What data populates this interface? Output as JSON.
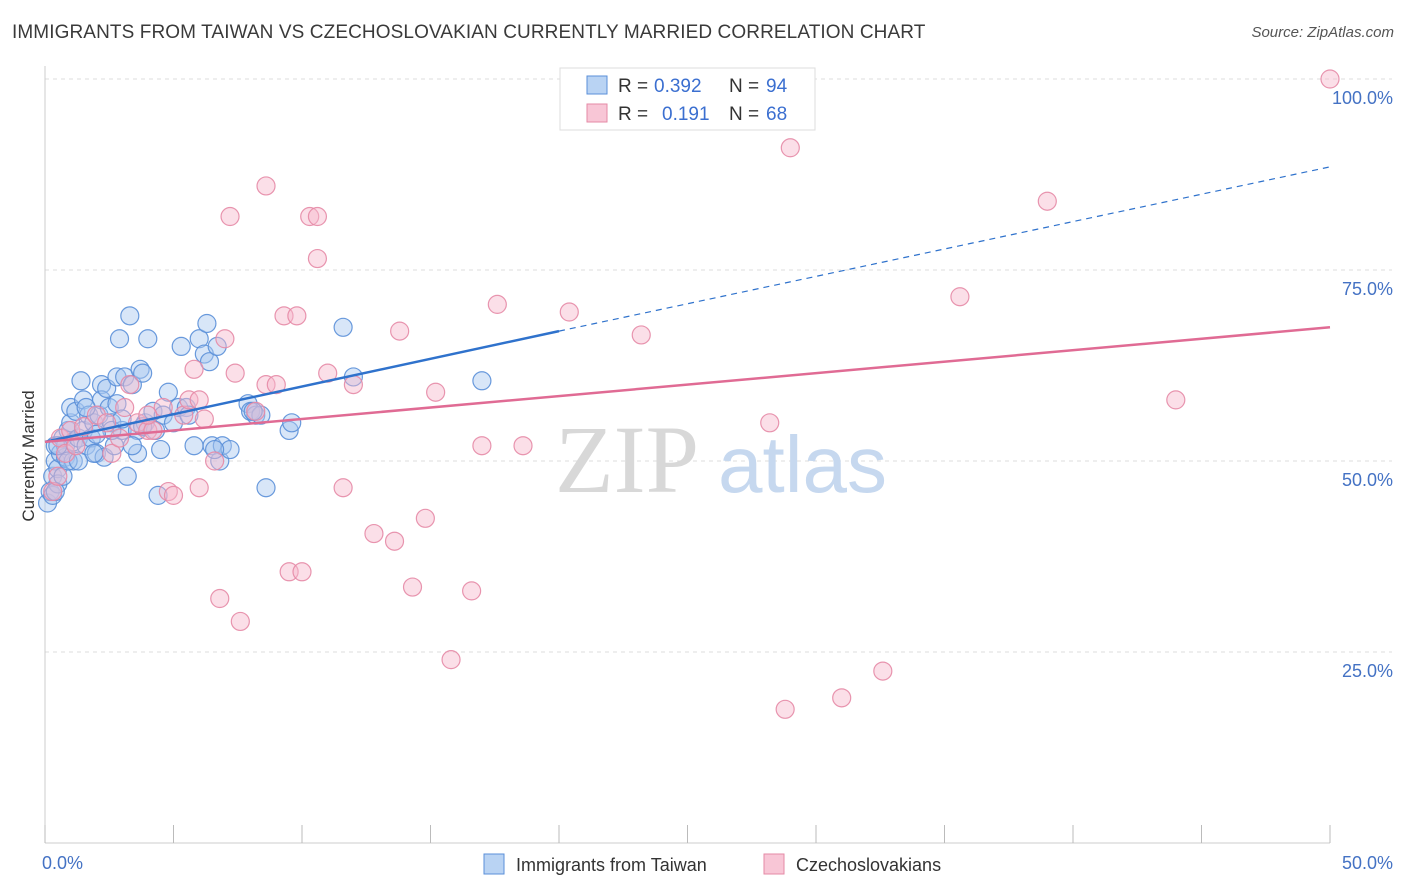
{
  "header": {
    "title": "IMMIGRANTS FROM TAIWAN VS CZECHOSLOVAKIAN CURRENTLY MARRIED CORRELATION CHART",
    "source": "Source: ZipAtlas.com"
  },
  "watermark": {
    "zip": "ZIP",
    "atlas": "atlas"
  },
  "legend": {
    "r_label": "R =",
    "n_label": "N =",
    "series": [
      {
        "r": "0.392",
        "n": "94"
      },
      {
        "r": "0.191",
        "n": "68"
      }
    ]
  },
  "bottom_legend": {
    "series": [
      {
        "label": "Immigrants from Taiwan"
      },
      {
        "label": "Czechoslovakians"
      }
    ]
  },
  "chart_data": {
    "type": "scatter",
    "ylabel": "Currently Married",
    "xlim": [
      0,
      50
    ],
    "ylim": [
      0,
      100
    ],
    "x_tick_labels": [
      "0.0%",
      "50.0%"
    ],
    "y_tick_labels": [
      "25.0%",
      "50.0%",
      "75.0%",
      "100.0%"
    ],
    "y_ticks": [
      25,
      50,
      75,
      100
    ],
    "grid": true,
    "legend_position": "top-center",
    "colors": {
      "taiwan_fill": "#a8c8f0",
      "taiwan_stroke": "#5a8fd8",
      "taiwan_line": "#2f72cc",
      "czech_fill": "#f6b8cc",
      "czech_stroke": "#e58aa6",
      "czech_line": "#e06b94",
      "grid": "#dddddd",
      "axis_labels": "#4472c4"
    },
    "series": [
      {
        "name": "Immigrants from Taiwan",
        "trend": {
          "x0": 0,
          "y0": 52.5,
          "x1": 20,
          "y1": 67,
          "dash_to_x": 50,
          "dash_to_y": 88.5
        },
        "points": [
          [
            0.1,
            44.5
          ],
          [
            0.2,
            46
          ],
          [
            0.3,
            45.5
          ],
          [
            0.3,
            48
          ],
          [
            0.4,
            50
          ],
          [
            0.4,
            52
          ],
          [
            0.5,
            49
          ],
          [
            0.5,
            47
          ],
          [
            0.6,
            51
          ],
          [
            0.7,
            53
          ],
          [
            0.7,
            48
          ],
          [
            0.8,
            50.5
          ],
          [
            0.8,
            52
          ],
          [
            0.9,
            54
          ],
          [
            1.0,
            55
          ],
          [
            1.0,
            57
          ],
          [
            1.1,
            50
          ],
          [
            1.1,
            52.5
          ],
          [
            1.2,
            56.5
          ],
          [
            1.3,
            53
          ],
          [
            1.4,
            60.5
          ],
          [
            1.5,
            54
          ],
          [
            1.5,
            58
          ],
          [
            1.6,
            52
          ],
          [
            1.7,
            56
          ],
          [
            1.8,
            53
          ],
          [
            1.9,
            55
          ],
          [
            2.0,
            51
          ],
          [
            2.1,
            56
          ],
          [
            2.2,
            60
          ],
          [
            2.2,
            58
          ],
          [
            2.3,
            50.5
          ],
          [
            2.4,
            59.5
          ],
          [
            2.5,
            57
          ],
          [
            2.6,
            55
          ],
          [
            2.7,
            52
          ],
          [
            2.8,
            61
          ],
          [
            2.9,
            66
          ],
          [
            3.0,
            54
          ],
          [
            3.1,
            61
          ],
          [
            3.2,
            48
          ],
          [
            3.3,
            69
          ],
          [
            3.4,
            60
          ],
          [
            3.6,
            51
          ],
          [
            3.6,
            54
          ],
          [
            3.7,
            62
          ],
          [
            3.8,
            61.5
          ],
          [
            3.9,
            55
          ],
          [
            4.0,
            66
          ],
          [
            4.2,
            56.5
          ],
          [
            4.3,
            54
          ],
          [
            4.4,
            45.5
          ],
          [
            4.5,
            51.5
          ],
          [
            4.6,
            56
          ],
          [
            4.8,
            59
          ],
          [
            5.0,
            55
          ],
          [
            5.2,
            57
          ],
          [
            5.3,
            65
          ],
          [
            5.5,
            57
          ],
          [
            5.8,
            52
          ],
          [
            6.0,
            66
          ],
          [
            6.2,
            64
          ],
          [
            6.3,
            68
          ],
          [
            6.4,
            63
          ],
          [
            6.5,
            52
          ],
          [
            6.7,
            65
          ],
          [
            6.8,
            50
          ],
          [
            6.9,
            52
          ],
          [
            7.2,
            51.5
          ],
          [
            7.9,
            57.5
          ],
          [
            8.0,
            56.5
          ],
          [
            8.2,
            56
          ],
          [
            8.4,
            56
          ],
          [
            8.6,
            46.5
          ],
          [
            9.5,
            54
          ],
          [
            9.6,
            55
          ],
          [
            11.6,
            67.5
          ],
          [
            12.0,
            61
          ],
          [
            17.0,
            60.5
          ],
          [
            0.9,
            50
          ],
          [
            1.6,
            57
          ],
          [
            2.6,
            54
          ],
          [
            3.4,
            52
          ],
          [
            0.4,
            46
          ],
          [
            1.9,
            51
          ],
          [
            2.8,
            57.5
          ],
          [
            3.8,
            54.5
          ],
          [
            5.6,
            56
          ],
          [
            6.6,
            51.5
          ],
          [
            8.1,
            56.5
          ],
          [
            0.5,
            52
          ],
          [
            1.3,
            50
          ],
          [
            2.0,
            53.5
          ],
          [
            3.0,
            55.5
          ]
        ]
      },
      {
        "name": "Czechoslovakians",
        "trend": {
          "x0": 0,
          "y0": 52.5,
          "x1": 50,
          "y1": 67.5
        },
        "points": [
          [
            0.3,
            46
          ],
          [
            0.5,
            48
          ],
          [
            0.6,
            53
          ],
          [
            0.8,
            51
          ],
          [
            1.0,
            54
          ],
          [
            1.2,
            52
          ],
          [
            1.5,
            54.5
          ],
          [
            2.0,
            56
          ],
          [
            2.4,
            55
          ],
          [
            2.6,
            51
          ],
          [
            2.9,
            53
          ],
          [
            3.1,
            57
          ],
          [
            3.3,
            60
          ],
          [
            3.6,
            55
          ],
          [
            4.0,
            54
          ],
          [
            4.2,
            54
          ],
          [
            4.6,
            57
          ],
          [
            4.8,
            46
          ],
          [
            5.0,
            45.5
          ],
          [
            5.4,
            56
          ],
          [
            5.6,
            58
          ],
          [
            5.8,
            62
          ],
          [
            6.0,
            46.5
          ],
          [
            6.2,
            55.5
          ],
          [
            6.6,
            50
          ],
          [
            6.8,
            32
          ],
          [
            7.0,
            66
          ],
          [
            7.2,
            82
          ],
          [
            7.4,
            61.5
          ],
          [
            7.6,
            29
          ],
          [
            8.2,
            56.5
          ],
          [
            8.6,
            60
          ],
          [
            8.6,
            86
          ],
          [
            9.0,
            60
          ],
          [
            9.3,
            69
          ],
          [
            9.5,
            35.5
          ],
          [
            9.8,
            69
          ],
          [
            10.0,
            35.5
          ],
          [
            10.3,
            82
          ],
          [
            10.6,
            76.5
          ],
          [
            10.6,
            82
          ],
          [
            11.0,
            61.5
          ],
          [
            11.6,
            46.5
          ],
          [
            12.0,
            60
          ],
          [
            12.8,
            40.5
          ],
          [
            13.6,
            39.5
          ],
          [
            13.8,
            67
          ],
          [
            14.3,
            33.5
          ],
          [
            14.8,
            42.5
          ],
          [
            15.2,
            59
          ],
          [
            15.8,
            24
          ],
          [
            16.6,
            33
          ],
          [
            17.0,
            52
          ],
          [
            17.6,
            70.5
          ],
          [
            18.6,
            52
          ],
          [
            20.4,
            69.5
          ],
          [
            23.2,
            66.5
          ],
          [
            28.2,
            55
          ],
          [
            28.8,
            17.5
          ],
          [
            29.0,
            91
          ],
          [
            31.0,
            19
          ],
          [
            32.6,
            22.5
          ],
          [
            35.6,
            71.5
          ],
          [
            39.0,
            84
          ],
          [
            44.0,
            58
          ],
          [
            50,
            100
          ],
          [
            4.0,
            56
          ],
          [
            6.0,
            58
          ]
        ]
      }
    ]
  }
}
